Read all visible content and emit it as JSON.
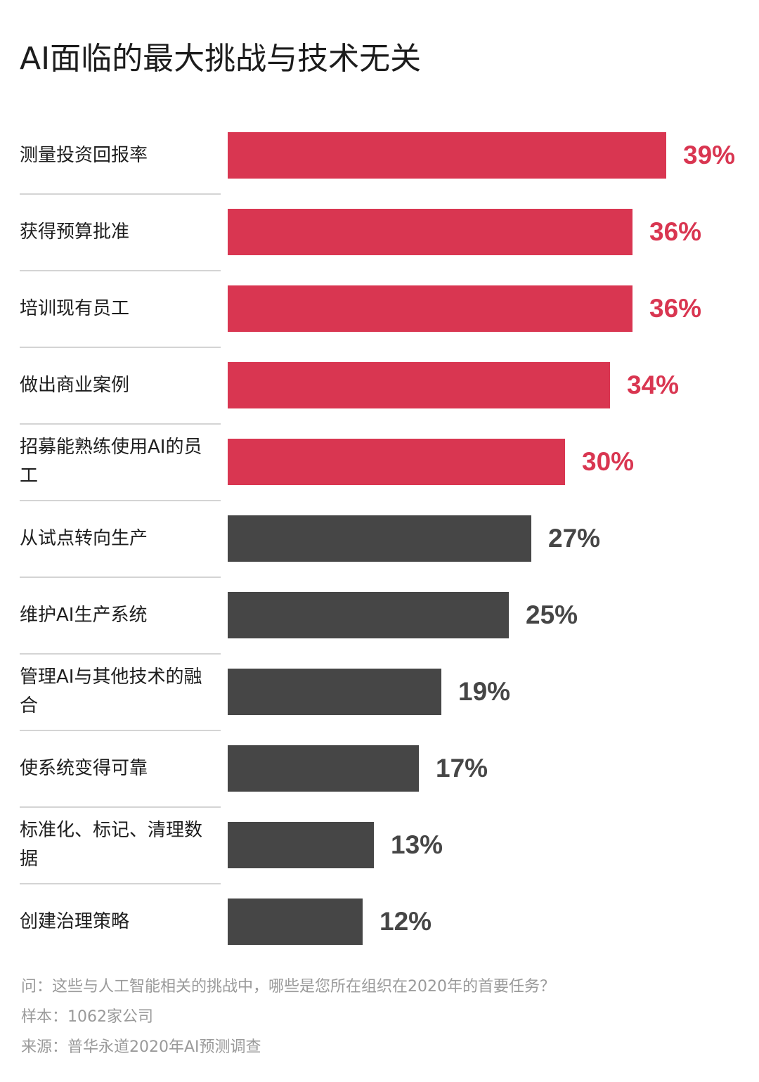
{
  "chart_data": {
    "type": "bar",
    "orientation": "horizontal",
    "title": "AI面临的最大挑战与技术无关",
    "categories": [
      "测量投资回报率",
      "获得预算批准",
      "培训现有员工",
      "做出商业案例",
      "招募能熟练使用AI的员工",
      "从试点转向生产",
      "维护AI生产系统",
      "管理AI与其他技术的融合",
      "使系统变得可靠",
      "标准化、标记、清理数据",
      "创建治理策略"
    ],
    "values": [
      39,
      36,
      36,
      34,
      30,
      27,
      25,
      19,
      17,
      13,
      12
    ],
    "value_labels": [
      "39%",
      "36%",
      "36%",
      "34%",
      "30%",
      "27%",
      "25%",
      "19%",
      "17%",
      "13%",
      "12%"
    ],
    "highlight_count": 5,
    "colors": {
      "highlight": "#d93651",
      "default": "#464646"
    },
    "grid": false,
    "legend": "none"
  },
  "notes": {
    "question": "问：这些与人工智能相关的挑战中，哪些是您所在组织在2020年的首要任务？",
    "sample": "样本：1062家公司",
    "source": "来源：普华永道2020年AI预测调查"
  }
}
